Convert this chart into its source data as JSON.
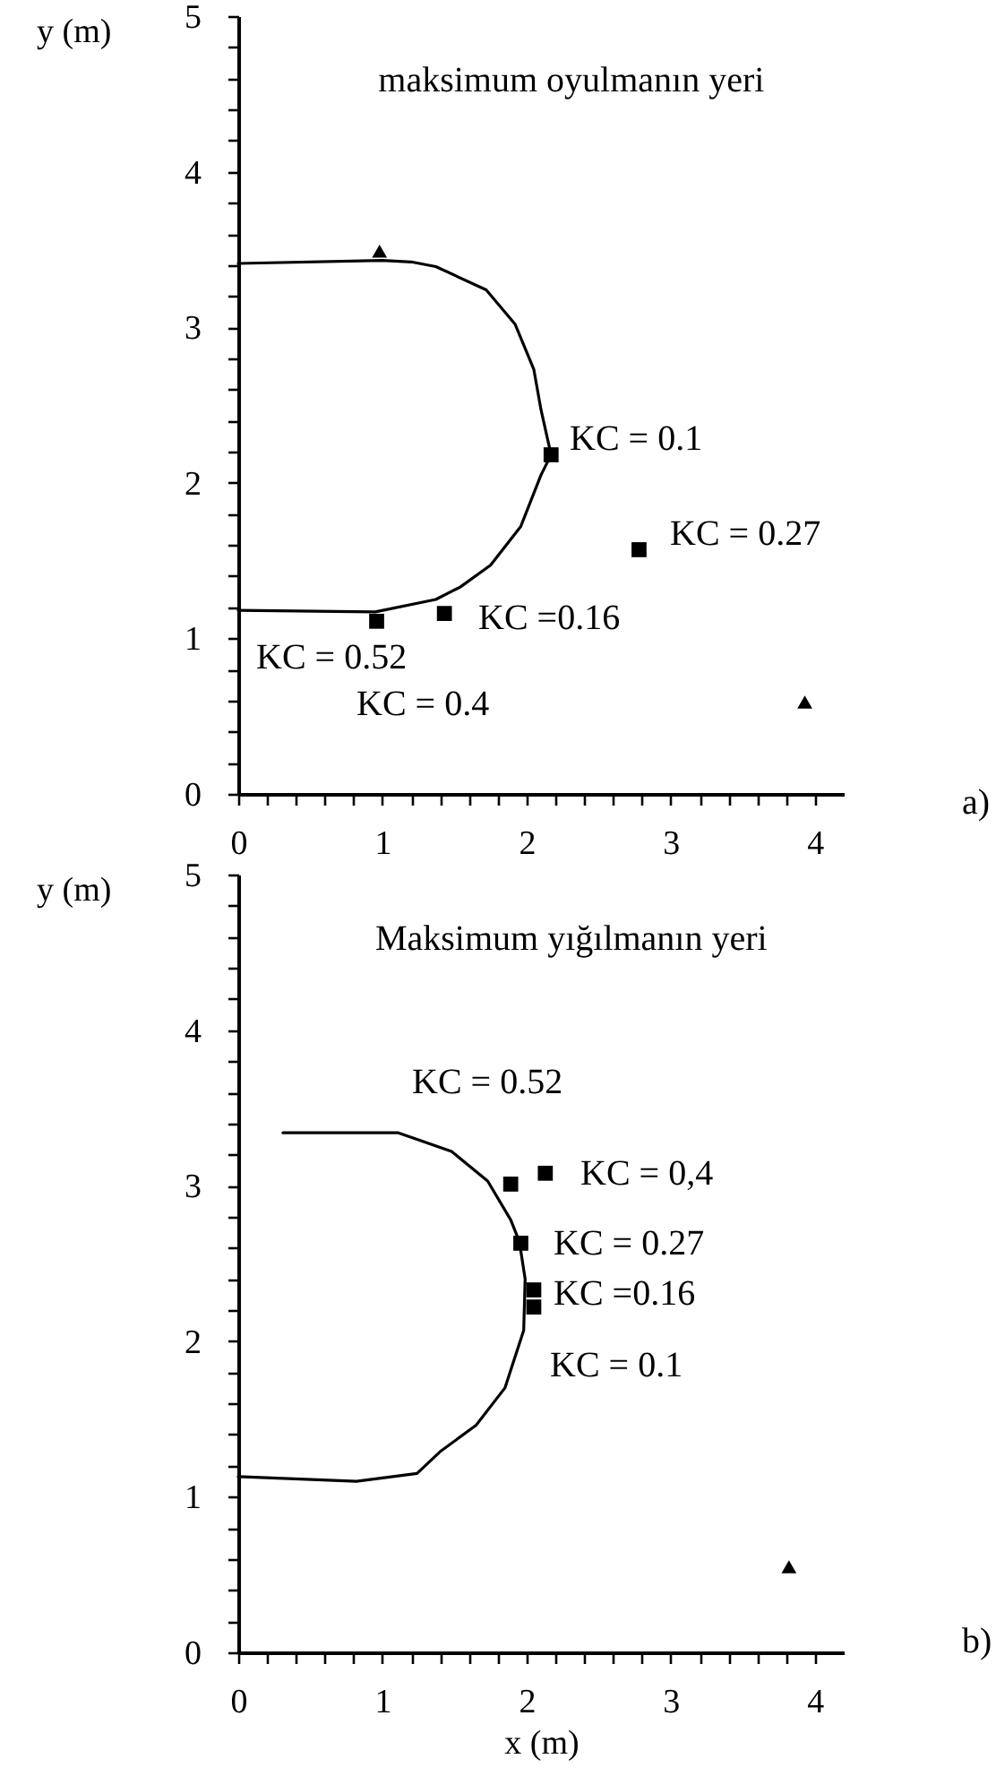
{
  "chart_data": [
    {
      "type": "scatter",
      "title": "maksimum oyulmanın yeri",
      "ylabel": "y (m)",
      "xlim": [
        0,
        4.2
      ],
      "xticks": [
        0,
        {
          "value": 0.2,
          "label": null
        },
        {
          "value": 0.4,
          "label": null
        },
        {
          "value": 0.6,
          "label": null
        },
        {
          "value": 0.8,
          "label": null
        },
        1,
        {
          "value": 1.2,
          "label": null
        },
        {
          "value": 1.4,
          "label": null
        },
        {
          "value": 1.6,
          "label": null
        },
        {
          "value": 1.8,
          "label": null
        },
        2,
        {
          "value": 2.2,
          "label": null
        },
        {
          "value": 2.4,
          "label": null
        },
        {
          "value": 2.6,
          "label": null
        },
        {
          "value": 2.8,
          "label": null
        },
        3,
        {
          "value": 3.2,
          "label": null
        },
        {
          "value": 3.4,
          "label": null
        },
        {
          "value": 3.6,
          "label": null
        },
        {
          "value": 3.8,
          "label": null
        },
        4
      ],
      "ylim": [
        0,
        5
      ],
      "yticks": [
        0,
        {
          "value": 0.2,
          "label": null
        },
        {
          "value": 0.4,
          "label": null
        },
        {
          "value": 0.6,
          "label": null
        },
        {
          "value": 0.8,
          "label": null
        },
        1,
        {
          "value": 1.2,
          "label": null
        },
        {
          "value": 1.4,
          "label": null
        },
        {
          "value": 1.6,
          "label": null
        },
        {
          "value": 1.8,
          "label": null
        },
        2,
        {
          "value": 2.2,
          "label": null
        },
        {
          "value": 2.4,
          "label": null
        },
        {
          "value": 2.6,
          "label": null
        },
        {
          "value": 2.8,
          "label": null
        },
        3,
        {
          "value": 3.2,
          "label": null
        },
        {
          "value": 3.4,
          "label": null
        },
        {
          "value": 3.6,
          "label": null
        },
        {
          "value": 3.8,
          "label": null
        },
        4,
        {
          "value": 4.2,
          "label": null
        },
        {
          "value": 4.4,
          "label": null
        },
        {
          "value": 4.6,
          "label": null
        },
        {
          "value": 4.8,
          "label": null
        },
        5
      ],
      "series": [
        {
          "type": "line",
          "color": "#000000",
          "x": [
            0,
            1.0,
            1.2,
            1.37,
            1.72,
            1.92,
            2.05,
            2.1,
            2.17,
            2.1,
            1.96,
            1.75,
            1.54,
            1.37,
            0.95,
            0
          ],
          "values": [
            3.41,
            3.43,
            3.42,
            3.39,
            3.24,
            3.02,
            2.73,
            2.47,
            2.18,
            2.05,
            1.72,
            1.47,
            1.33,
            1.25,
            1.17,
            1.18
          ]
        },
        {
          "marker": "square",
          "color": "#000000",
          "x": [
            2.17,
            2.78,
            1.43,
            0.96
          ],
          "values": [
            2.18,
            1.57,
            1.16,
            1.11
          ]
        },
        {
          "marker": "triangle",
          "color": "#000000",
          "x": [
            0.98,
            3.93
          ],
          "values": [
            3.49,
            0.59
          ]
        }
      ],
      "annotations": [
        "KC = 0.1",
        "KC = 0.27",
        "KC =0.16",
        "KC = 0.52",
        "KC = 0.4",
        "a)"
      ]
    },
    {
      "type": "scatter",
      "title": "Maksimum yığılmanın yeri",
      "xlabel": "x (m)",
      "ylabel": "y (m)",
      "xlim": [
        0,
        4.2
      ],
      "xticks": [
        0,
        {
          "value": 0.2,
          "label": null
        },
        {
          "value": 0.4,
          "label": null
        },
        {
          "value": 0.6,
          "label": null
        },
        {
          "value": 0.8,
          "label": null
        },
        1,
        {
          "value": 1.2,
          "label": null
        },
        {
          "value": 1.4,
          "label": null
        },
        {
          "value": 1.6,
          "label": null
        },
        {
          "value": 1.8,
          "label": null
        },
        2,
        {
          "value": 2.2,
          "label": null
        },
        {
          "value": 2.4,
          "label": null
        },
        {
          "value": 2.6,
          "label": null
        },
        {
          "value": 2.8,
          "label": null
        },
        3,
        {
          "value": 3.2,
          "label": null
        },
        {
          "value": 3.4,
          "label": null
        },
        {
          "value": 3.6,
          "label": null
        },
        {
          "value": 3.8,
          "label": null
        },
        4
      ],
      "ylim": [
        0,
        5
      ],
      "yticks": [
        0,
        {
          "value": 0.2,
          "label": null
        },
        {
          "value": 0.4,
          "label": null
        },
        {
          "value": 0.6,
          "label": null
        },
        {
          "value": 0.8,
          "label": null
        },
        1,
        {
          "value": 1.2,
          "label": null
        },
        {
          "value": 1.4,
          "label": null
        },
        {
          "value": 1.6,
          "label": null
        },
        {
          "value": 1.8,
          "label": null
        },
        2,
        {
          "value": 2.2,
          "label": null
        },
        {
          "value": 2.4,
          "label": null
        },
        {
          "value": 2.6,
          "label": null
        },
        {
          "value": 2.8,
          "label": null
        },
        3,
        {
          "value": 3.2,
          "label": null
        },
        {
          "value": 3.4,
          "label": null
        },
        {
          "value": 3.6,
          "label": null
        },
        {
          "value": 3.8,
          "label": null
        },
        4,
        {
          "value": 4.2,
          "label": null
        },
        {
          "value": 4.4,
          "label": null
        },
        {
          "value": 4.6,
          "label": null
        },
        {
          "value": 4.8,
          "label": null
        },
        5
      ],
      "series": [
        {
          "type": "line",
          "color": "#000000",
          "x": [
            0.31,
            1.11,
            1.48,
            1.73,
            1.89,
            1.95,
            1.99,
            1.98,
            1.85,
            1.65,
            1.4,
            1.24,
            0.82,
            0
          ],
          "values": [
            3.34,
            3.34,
            3.22,
            3.03,
            2.78,
            2.64,
            2.4,
            2.07,
            1.7,
            1.46,
            1.29,
            1.15,
            1.1,
            1.13
          ]
        },
        {
          "marker": "square",
          "color": "#000000",
          "x": [
            1.89,
            2.13,
            1.96,
            2.05,
            2.05
          ],
          "values": [
            3.01,
            3.08,
            2.63,
            2.33,
            2.22
          ]
        },
        {
          "marker": "triangle",
          "color": "#000000",
          "x": [
            3.82
          ],
          "values": [
            0.55
          ]
        }
      ],
      "annotations": [
        "KC = 0.52",
        "KC = 0,4",
        "KC = 0.27",
        "KC =0.16",
        "KC = 0.1",
        "b)"
      ]
    }
  ]
}
